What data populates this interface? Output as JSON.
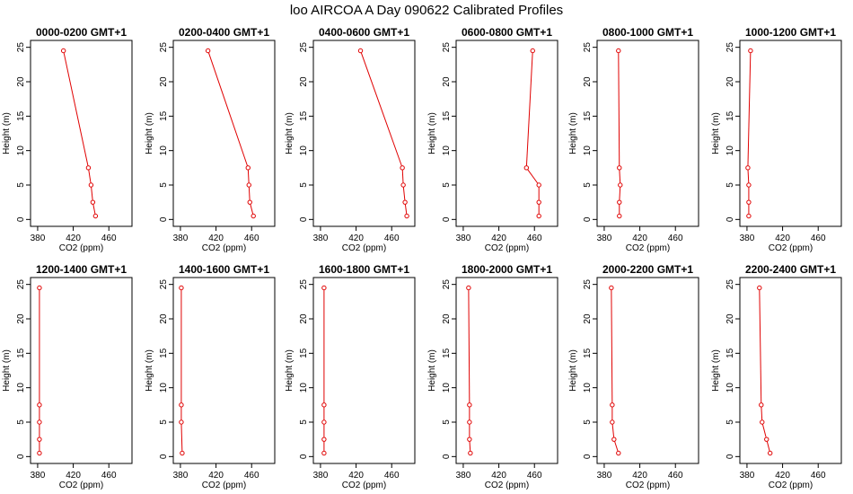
{
  "title": "loo AIRCOA A  Day 090622  Calibrated Profiles",
  "colors": {
    "profile": "#e00000",
    "axis": "#000000",
    "background": "#ffffff"
  },
  "chart_data": [
    {
      "type": "line",
      "title": "0000-0200 GMT+1",
      "xlabel": "CO2 (ppm)",
      "ylabel": "Height (m)",
      "xlim": [
        372,
        486
      ],
      "ylim": [
        -1,
        26
      ],
      "xticks": [
        380,
        420,
        460
      ],
      "yticks": [
        0,
        5,
        10,
        15,
        20,
        25
      ],
      "series": [
        {
          "x": [
            445,
            442,
            440,
            437,
            409
          ],
          "y": [
            0.5,
            2.5,
            5,
            7.5,
            24.5
          ]
        }
      ]
    },
    {
      "type": "line",
      "title": "0200-0400 GMT+1",
      "xlabel": "CO2 (ppm)",
      "ylabel": "Height (m)",
      "xlim": [
        372,
        486
      ],
      "ylim": [
        -1,
        26
      ],
      "xticks": [
        380,
        420,
        460
      ],
      "yticks": [
        0,
        5,
        10,
        15,
        20,
        25
      ],
      "series": [
        {
          "x": [
            462,
            458,
            457,
            456,
            411
          ],
          "y": [
            0.5,
            2.5,
            5,
            7.5,
            24.5
          ]
        }
      ]
    },
    {
      "type": "line",
      "title": "0400-0600 GMT+1",
      "xlabel": "CO2 (ppm)",
      "ylabel": "Height (m)",
      "xlim": [
        372,
        486
      ],
      "ylim": [
        -1,
        26
      ],
      "xticks": [
        380,
        420,
        460
      ],
      "yticks": [
        0,
        5,
        10,
        15,
        20,
        25
      ],
      "series": [
        {
          "x": [
            477,
            475,
            473,
            472,
            425
          ],
          "y": [
            0.5,
            2.5,
            5,
            7.5,
            24.5
          ]
        }
      ]
    },
    {
      "type": "line",
      "title": "0600-0800 GMT+1",
      "xlabel": "CO2 (ppm)",
      "ylabel": "Height (m)",
      "xlim": [
        372,
        486
      ],
      "ylim": [
        -1,
        26
      ],
      "xticks": [
        380,
        420,
        460
      ],
      "yticks": [
        0,
        5,
        10,
        15,
        20,
        25
      ],
      "series": [
        {
          "x": [
            465,
            465,
            465,
            451,
            458
          ],
          "y": [
            0.5,
            2.5,
            5,
            7.5,
            24.5
          ]
        }
      ]
    },
    {
      "type": "line",
      "title": "0800-1000 GMT+1",
      "xlabel": "CO2 (ppm)",
      "ylabel": "Height (m)",
      "xlim": [
        372,
        486
      ],
      "ylim": [
        -1,
        26
      ],
      "xticks": [
        380,
        420,
        460
      ],
      "yticks": [
        0,
        5,
        10,
        15,
        20,
        25
      ],
      "series": [
        {
          "x": [
            397,
            397,
            398,
            397,
            396
          ],
          "y": [
            0.5,
            2.5,
            5,
            7.5,
            24.5
          ]
        }
      ]
    },
    {
      "type": "line",
      "title": "1000-1200 GMT+1",
      "xlabel": "CO2 (ppm)",
      "ylabel": "Height (m)",
      "xlim": [
        372,
        486
      ],
      "ylim": [
        -1,
        26
      ],
      "xticks": [
        380,
        420,
        460
      ],
      "yticks": [
        0,
        5,
        10,
        15,
        20,
        25
      ],
      "series": [
        {
          "x": [
            382,
            382,
            382,
            381,
            384
          ],
          "y": [
            0.5,
            2.5,
            5,
            7.5,
            24.5
          ]
        }
      ]
    },
    {
      "type": "line",
      "title": "1200-1400 GMT+1",
      "xlabel": "CO2 (ppm)",
      "ylabel": "Height (m)",
      "xlim": [
        372,
        486
      ],
      "ylim": [
        -1,
        26
      ],
      "xticks": [
        380,
        420,
        460
      ],
      "yticks": [
        0,
        5,
        10,
        15,
        20,
        25
      ],
      "series": [
        {
          "x": [
            382,
            382,
            382,
            382,
            382
          ],
          "y": [
            0.5,
            2.5,
            5,
            7.5,
            24.5
          ]
        }
      ]
    },
    {
      "type": "line",
      "title": "1400-1600 GMT+1",
      "xlabel": "CO2 (ppm)",
      "ylabel": "Height (m)",
      "xlim": [
        372,
        486
      ],
      "ylim": [
        -1,
        26
      ],
      "xticks": [
        380,
        420,
        460
      ],
      "yticks": [
        0,
        5,
        10,
        15,
        20,
        25
      ],
      "series": [
        {
          "x": [
            382,
            null,
            381,
            381,
            381
          ],
          "y": [
            0.5,
            2.5,
            5,
            7.5,
            24.5
          ]
        }
      ]
    },
    {
      "type": "line",
      "title": "1600-1800 GMT+1",
      "xlabel": "CO2 (ppm)",
      "ylabel": "Height (m)",
      "xlim": [
        372,
        486
      ],
      "ylim": [
        -1,
        26
      ],
      "xticks": [
        380,
        420,
        460
      ],
      "yticks": [
        0,
        5,
        10,
        15,
        20,
        25
      ],
      "series": [
        {
          "x": [
            384,
            384,
            384,
            384,
            384
          ],
          "y": [
            0.5,
            2.5,
            5,
            7.5,
            24.5
          ]
        }
      ]
    },
    {
      "type": "line",
      "title": "1800-2000 GMT+1",
      "xlabel": "CO2 (ppm)",
      "ylabel": "Height (m)",
      "xlim": [
        372,
        486
      ],
      "ylim": [
        -1,
        26
      ],
      "xticks": [
        380,
        420,
        460
      ],
      "yticks": [
        0,
        5,
        10,
        15,
        20,
        25
      ],
      "series": [
        {
          "x": [
            388,
            387,
            387,
            387,
            386
          ],
          "y": [
            0.5,
            2.5,
            5,
            7.5,
            24.5
          ]
        }
      ]
    },
    {
      "type": "line",
      "title": "2000-2200 GMT+1",
      "xlabel": "CO2 (ppm)",
      "ylabel": "Height (m)",
      "xlim": [
        372,
        486
      ],
      "ylim": [
        -1,
        26
      ],
      "xticks": [
        380,
        420,
        460
      ],
      "yticks": [
        0,
        5,
        10,
        15,
        20,
        25
      ],
      "series": [
        {
          "x": [
            396,
            391,
            389,
            389,
            388
          ],
          "y": [
            0.5,
            2.5,
            5,
            7.5,
            24.5
          ]
        }
      ]
    },
    {
      "type": "line",
      "title": "2200-2400 GMT+1",
      "xlabel": "CO2 (ppm)",
      "ylabel": "Height (m)",
      "xlim": [
        372,
        486
      ],
      "ylim": [
        -1,
        26
      ],
      "xticks": [
        380,
        420,
        460
      ],
      "yticks": [
        0,
        5,
        10,
        15,
        20,
        25
      ],
      "series": [
        {
          "x": [
            406,
            402,
            397,
            396,
            394
          ],
          "y": [
            0.5,
            2.5,
            5,
            7.5,
            24.5
          ]
        }
      ]
    }
  ]
}
